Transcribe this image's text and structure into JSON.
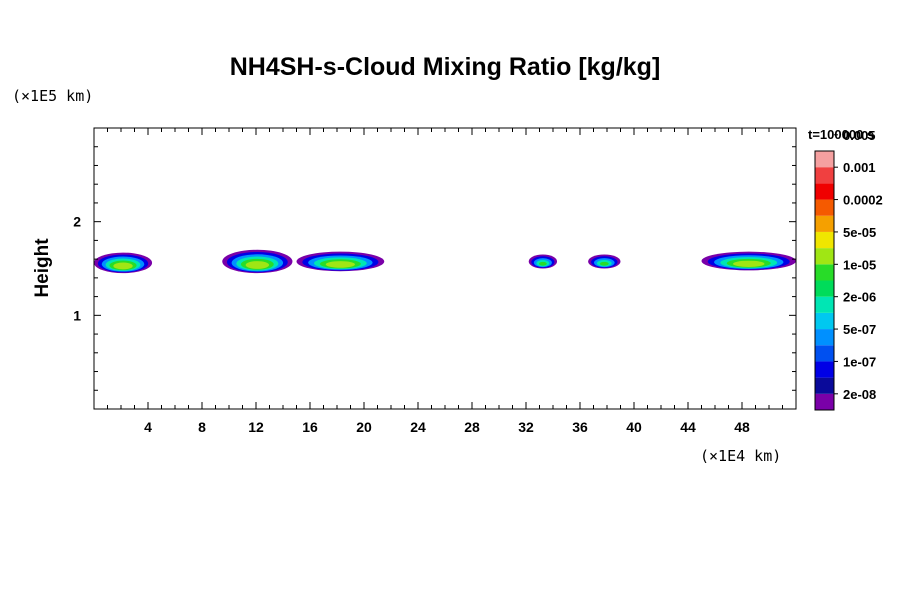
{
  "chart_data": {
    "type": "heatmap",
    "title": "NH4SH-s-Cloud Mixing Ratio [kg/kg]",
    "ylabel": "Height",
    "y_scale_note": "(×1E5 km)",
    "x_scale_note": "(×1E4 km)",
    "time_label": "t=100000 s",
    "xlim": [
      0,
      52
    ],
    "ylim": [
      0,
      3
    ],
    "x_ticks": [
      4,
      8,
      12,
      16,
      20,
      24,
      28,
      32,
      36,
      40,
      44,
      48
    ],
    "x_tick_labels": [
      "4",
      "8",
      "12",
      "16",
      "20",
      "24",
      "28",
      "32",
      "36",
      "40",
      "44",
      "48"
    ],
    "y_ticks": [
      1,
      2
    ],
    "y_tick_labels": [
      "1",
      "2"
    ],
    "colorbar": {
      "colors": [
        "#7a00a8",
        "#0a0a9a",
        "#0000e6",
        "#0050f0",
        "#0090ff",
        "#00c8f0",
        "#00e6b4",
        "#00dc5a",
        "#28dc28",
        "#a0e614",
        "#f0e600",
        "#f5a000",
        "#f55a00",
        "#f00000",
        "#f04040",
        "#f5a0a0"
      ],
      "labels": [
        "2e-08",
        "1e-07",
        "5e-07",
        "2e-06",
        "1e-05",
        "5e-05",
        "0.0002",
        "0.001",
        "0.005"
      ]
    },
    "clouds": [
      {
        "x_start": 0,
        "x_end": 4.3,
        "y_bottom": 1.45,
        "y_top": 1.67,
        "peak": "5e-05"
      },
      {
        "x_start": 9.5,
        "x_end": 14.7,
        "y_bottom": 1.45,
        "y_top": 1.7,
        "peak": "5e-05"
      },
      {
        "x_start": 15,
        "x_end": 21.5,
        "y_bottom": 1.47,
        "y_top": 1.68,
        "peak": "5e-05"
      },
      {
        "x_start": 32.2,
        "x_end": 34.3,
        "y_bottom": 1.5,
        "y_top": 1.65,
        "peak": "2e-06"
      },
      {
        "x_start": 36.6,
        "x_end": 39,
        "y_bottom": 1.5,
        "y_top": 1.65,
        "peak": "2e-06"
      },
      {
        "x_start": 45,
        "x_end": 52,
        "y_bottom": 1.48,
        "y_top": 1.68,
        "peak": "5e-05"
      }
    ]
  }
}
